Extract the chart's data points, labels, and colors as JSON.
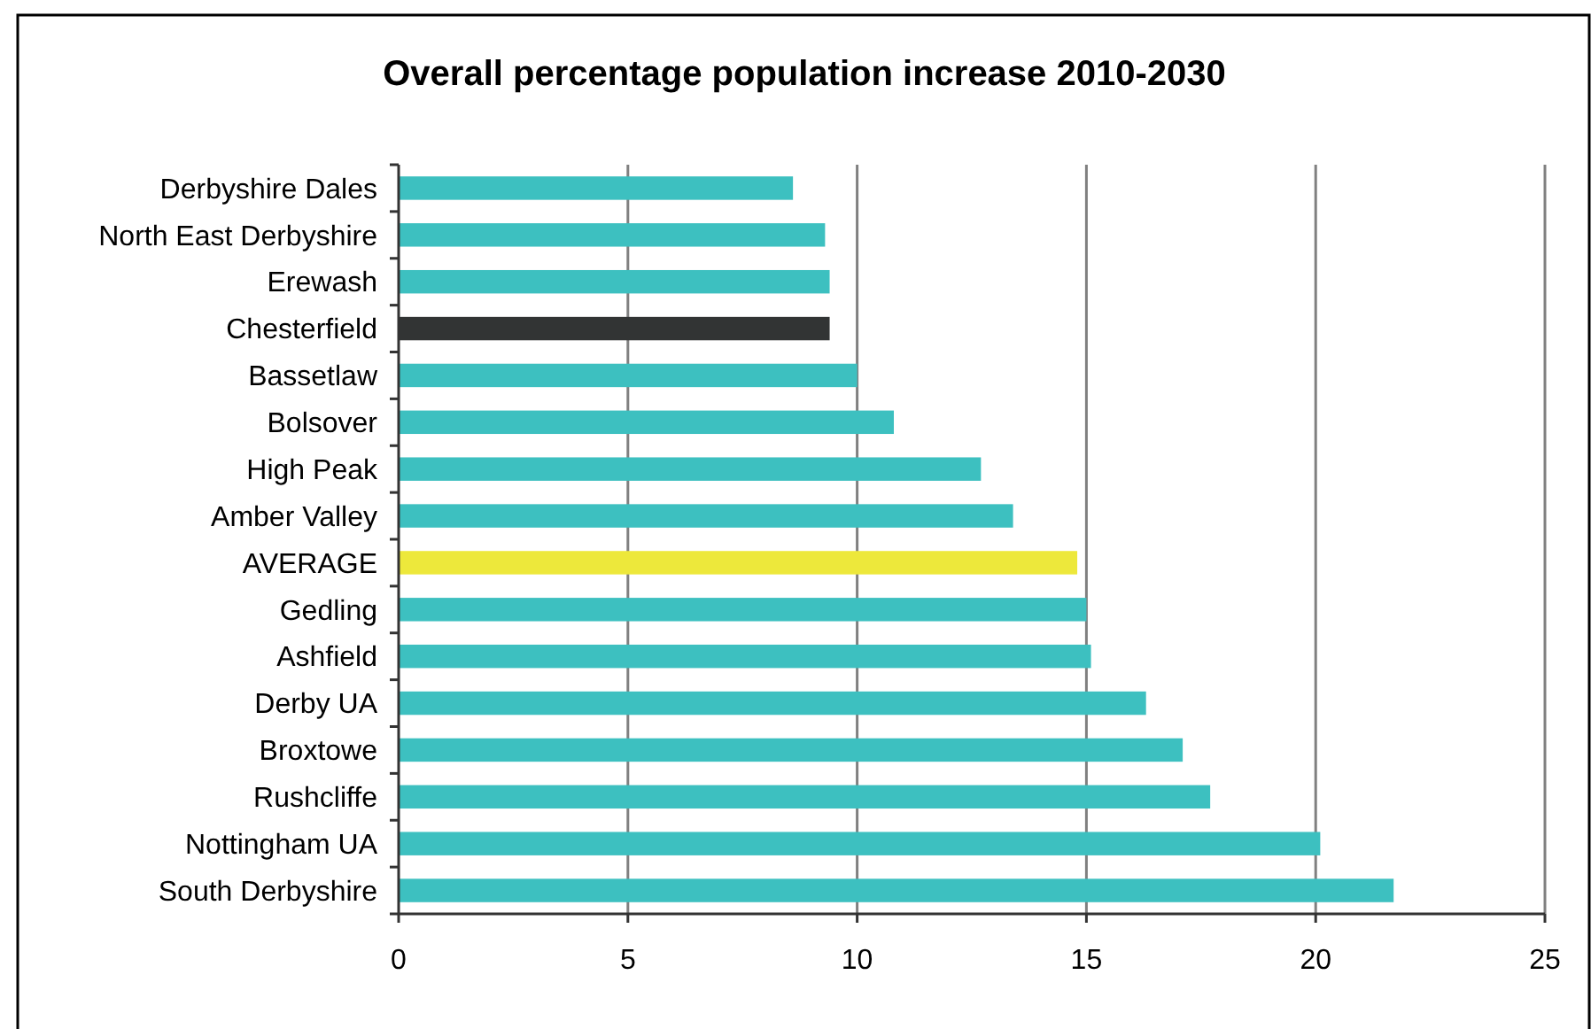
{
  "chart_data": {
    "type": "bar",
    "orientation": "horizontal",
    "title": "Overall percentage population increase 2010-2030",
    "categories": [
      "Derbyshire Dales",
      "North East Derbyshire",
      "Erewash",
      "Chesterfield",
      "Bassetlaw",
      "Bolsover",
      "High Peak",
      "Amber Valley",
      "AVERAGE",
      "Gedling",
      "Ashfield",
      "Derby UA",
      "Broxtowe",
      "Rushcliffe",
      "Nottingham UA",
      "South Derbyshire"
    ],
    "values": [
      8.6,
      9.3,
      9.4,
      9.4,
      10.0,
      10.8,
      12.7,
      13.4,
      14.8,
      15.0,
      15.1,
      16.3,
      17.1,
      17.7,
      20.1,
      21.7
    ],
    "colors": [
      "#3dc0c0",
      "#3dc0c0",
      "#3dc0c0",
      "#323434",
      "#3dc0c0",
      "#3dc0c0",
      "#3dc0c0",
      "#3dc0c0",
      "#ede83b",
      "#3dc0c0",
      "#3dc0c0",
      "#3dc0c0",
      "#3dc0c0",
      "#3dc0c0",
      "#3dc0c0",
      "#3dc0c0"
    ],
    "xlim": [
      0,
      25
    ],
    "xticks": [
      0,
      5,
      10,
      15,
      20,
      25
    ],
    "grid": "x"
  }
}
